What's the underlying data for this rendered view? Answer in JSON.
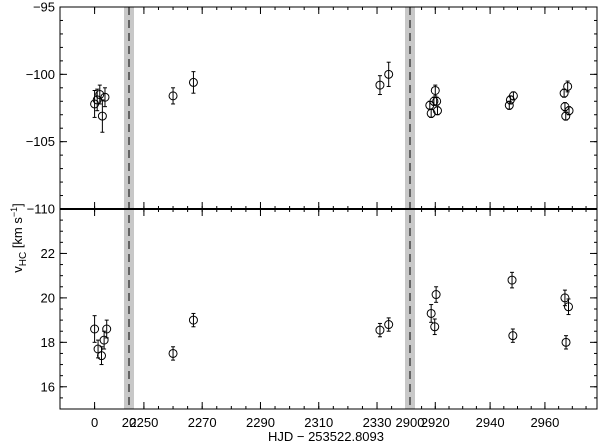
{
  "chart_data": [
    {
      "type": "scatter",
      "panel": "top",
      "ylim": [
        -110,
        -95
      ],
      "yticks": [
        -110,
        -105,
        -100,
        -95
      ],
      "ytick_labels": [
        "−110",
        "−105",
        "−100",
        "−95"
      ],
      "points": [
        {
          "x": 0.0,
          "y": -102.2,
          "err": 1.0
        },
        {
          "x": 0.3,
          "y": -101.9,
          "err": 0.8
        },
        {
          "x": 0.6,
          "y": -101.5,
          "err": 0.7
        },
        {
          "x": 0.9,
          "y": -103.1,
          "err": 1.2
        },
        {
          "x": 1.2,
          "y": -101.7,
          "err": 0.7
        },
        {
          "x": 2260,
          "y": -101.6,
          "err": 0.6
        },
        {
          "x": 2267,
          "y": -100.6,
          "err": 0.8
        },
        {
          "x": 2331,
          "y": -100.8,
          "err": 0.7
        },
        {
          "x": 2334,
          "y": -100.0,
          "err": 0.9
        },
        {
          "x": 2918,
          "y": -102.3,
          "err": 0.3
        },
        {
          "x": 2918.5,
          "y": -102.9,
          "err": 0.3
        },
        {
          "x": 2919.5,
          "y": -102.0,
          "err": 0.3
        },
        {
          "x": 2920,
          "y": -101.2,
          "err": 0.4
        },
        {
          "x": 2920.5,
          "y": -102.0,
          "err": 0.3
        },
        {
          "x": 2920.8,
          "y": -102.7,
          "err": 0.3
        },
        {
          "x": 2947,
          "y": -102.3,
          "err": 0.3
        },
        {
          "x": 2947.4,
          "y": -101.9,
          "err": 0.3
        },
        {
          "x": 2948.5,
          "y": -101.6,
          "err": 0.3
        },
        {
          "x": 2967,
          "y": -101.4,
          "err": 0.3
        },
        {
          "x": 2967.3,
          "y": -102.4,
          "err": 0.3
        },
        {
          "x": 2967.6,
          "y": -103.1,
          "err": 0.3
        },
        {
          "x": 2968.3,
          "y": -100.9,
          "err": 0.4
        },
        {
          "x": 2968.8,
          "y": -102.7,
          "err": 0.3
        }
      ]
    },
    {
      "type": "scatter",
      "panel": "bottom",
      "ylim": [
        15,
        24
      ],
      "yticks": [
        16,
        18,
        20,
        22
      ],
      "ytick_labels": [
        "16",
        "18",
        "20",
        "22"
      ],
      "points": [
        {
          "x": 0.0,
          "y": 18.6,
          "err": 0.6
        },
        {
          "x": 0.4,
          "y": 17.7,
          "err": 0.4
        },
        {
          "x": 0.8,
          "y": 17.4,
          "err": 0.4
        },
        {
          "x": 1.1,
          "y": 18.1,
          "err": 0.4
        },
        {
          "x": 1.4,
          "y": 18.6,
          "err": 0.4
        },
        {
          "x": 2260,
          "y": 17.5,
          "err": 0.3
        },
        {
          "x": 2267,
          "y": 19.0,
          "err": 0.3
        },
        {
          "x": 2331,
          "y": 18.55,
          "err": 0.3
        },
        {
          "x": 2334,
          "y": 18.8,
          "err": 0.3
        },
        {
          "x": 2918.5,
          "y": 19.3,
          "err": 0.4
        },
        {
          "x": 2919.8,
          "y": 18.7,
          "err": 0.35
        },
        {
          "x": 2920.3,
          "y": 20.15,
          "err": 0.35
        },
        {
          "x": 2948,
          "y": 20.8,
          "err": 0.35
        },
        {
          "x": 2948.3,
          "y": 18.3,
          "err": 0.3
        },
        {
          "x": 2967.3,
          "y": 20.0,
          "err": 0.35
        },
        {
          "x": 2967.7,
          "y": 18.0,
          "err": 0.3
        },
        {
          "x": 2968.6,
          "y": 19.6,
          "err": 0.35
        }
      ]
    }
  ],
  "x_axis": {
    "segments": [
      {
        "min": -4,
        "max": 3.4
      },
      {
        "min": 2246.6,
        "max": 2339.6
      },
      {
        "min": 2912.6,
        "max": 2979
      }
    ],
    "ticks": [
      0,
      2250,
      2270,
      2290,
      2310,
      2330,
      2920,
      2940,
      2960
    ],
    "tick_labels": [
      "0",
      "2250",
      "2270",
      "2290",
      "2310",
      "2330",
      "2920",
      "2940",
      "2960"
    ],
    "break_ticks": [
      {
        "after_segment": 0,
        "label": "20"
      },
      {
        "after_segment": 1,
        "label": "2900"
      }
    ],
    "label": "HJD − 253522.8093"
  },
  "y_axis_label": {
    "main": "v",
    "subscript": "HC",
    "unit_pre": " [km s",
    "unit_sup": "−1",
    "unit_post": "]"
  }
}
